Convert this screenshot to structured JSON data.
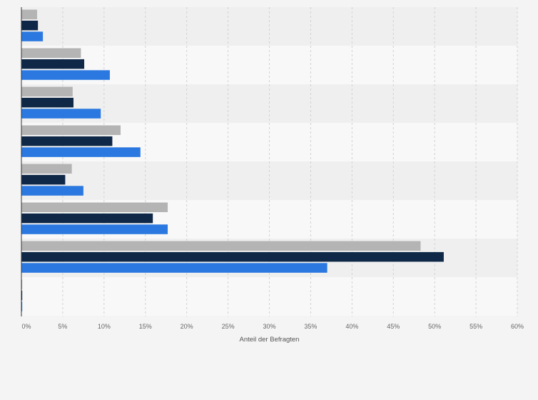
{
  "chart_data": {
    "type": "bar",
    "orientation": "horizontal",
    "title": "",
    "xlabel": "Anteil der Befragten",
    "ylabel": "",
    "xlim": [
      0,
      60
    ],
    "x_ticks": [
      "0%",
      "5%",
      "10%",
      "15%",
      "20%",
      "25%",
      "30%",
      "35%",
      "40%",
      "45%",
      "50%",
      "55%",
      "60%"
    ],
    "grid": "vertical dashed",
    "legend": "none",
    "categories": [
      "",
      "",
      "",
      "",
      "",
      "",
      "",
      ""
    ],
    "series": [
      {
        "color": "#b4b4b4",
        "values": [
          1.9,
          7.2,
          6.2,
          12.0,
          6.1,
          17.7,
          48.3,
          0.1
        ]
      },
      {
        "color": "#0f2847",
        "values": [
          2.0,
          7.6,
          6.3,
          11.0,
          5.3,
          15.9,
          51.1,
          0.1
        ]
      },
      {
        "color": "#2a78e0",
        "values": [
          2.6,
          10.7,
          9.6,
          14.4,
          7.5,
          17.7,
          37.0,
          0.1
        ]
      }
    ]
  }
}
